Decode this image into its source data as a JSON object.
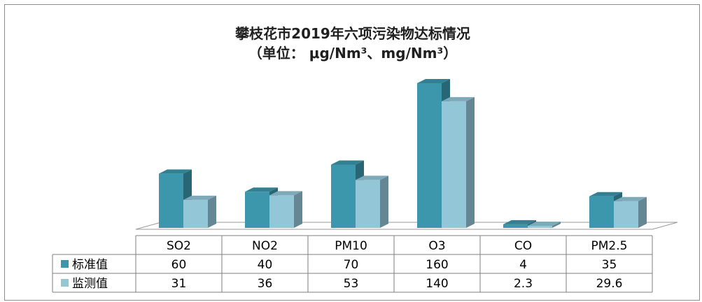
{
  "chart_data": {
    "type": "bar",
    "title": "攀枝花市2019年六项污染物达标情况",
    "subtitle": "（单位： μg/Nm³、mg/Nm³）",
    "categories": [
      "SO2",
      "NO2",
      "PM10",
      "O3",
      "CO",
      "PM2.5"
    ],
    "series": [
      {
        "name": "标准值",
        "values": [
          60,
          40,
          70,
          160,
          4,
          35
        ],
        "labels": [
          "60",
          "40",
          "70",
          "160",
          "4",
          "35"
        ],
        "color": "#3c96ac"
      },
      {
        "name": "监测值",
        "values": [
          31,
          36,
          53,
          140,
          2.3,
          29.6
        ],
        "labels": [
          "31",
          "36",
          "53",
          "140",
          "2.3",
          "29.6"
        ],
        "color": "#93c7d8"
      }
    ],
    "ylim": [
      0,
      160
    ],
    "grid": false,
    "legend": "data-table"
  }
}
